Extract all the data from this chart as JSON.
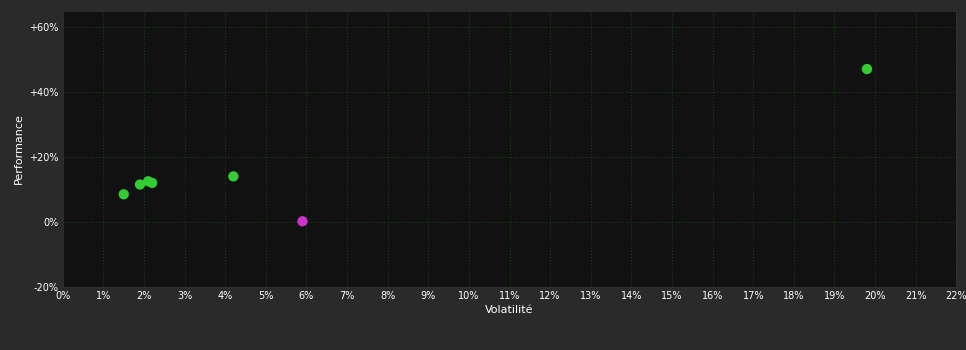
{
  "background_color": "#2a2a2a",
  "plot_bg_color": "#111111",
  "grid_color": "#1a3a1a",
  "grid_style": ":",
  "xlabel": "Volatilité",
  "ylabel": "Performance",
  "xlim": [
    0,
    0.22
  ],
  "ylim": [
    -0.2,
    0.65
  ],
  "xticks": [
    0.0,
    0.01,
    0.02,
    0.03,
    0.04,
    0.05,
    0.06,
    0.07,
    0.08,
    0.09,
    0.1,
    0.11,
    0.12,
    0.13,
    0.14,
    0.15,
    0.16,
    0.17,
    0.18,
    0.19,
    0.2,
    0.21,
    0.22
  ],
  "yticks": [
    -0.2,
    0.0,
    0.2,
    0.4,
    0.6
  ],
  "ytick_labels": [
    "-20%",
    "0%",
    "+20%",
    "+40%",
    "+60%"
  ],
  "points_green": [
    [
      0.015,
      0.085
    ],
    [
      0.019,
      0.115
    ],
    [
      0.021,
      0.125
    ],
    [
      0.022,
      0.12
    ],
    [
      0.042,
      0.14
    ],
    [
      0.198,
      0.47
    ]
  ],
  "points_magenta": [
    [
      0.059,
      0.002
    ]
  ],
  "green_color": "#33cc33",
  "magenta_color": "#cc33cc",
  "marker_size": 55,
  "label_fontsize": 8,
  "tick_fontsize": 7,
  "tick_color": "#ffffff",
  "label_color": "#ffffff",
  "spine_color": "#333333"
}
